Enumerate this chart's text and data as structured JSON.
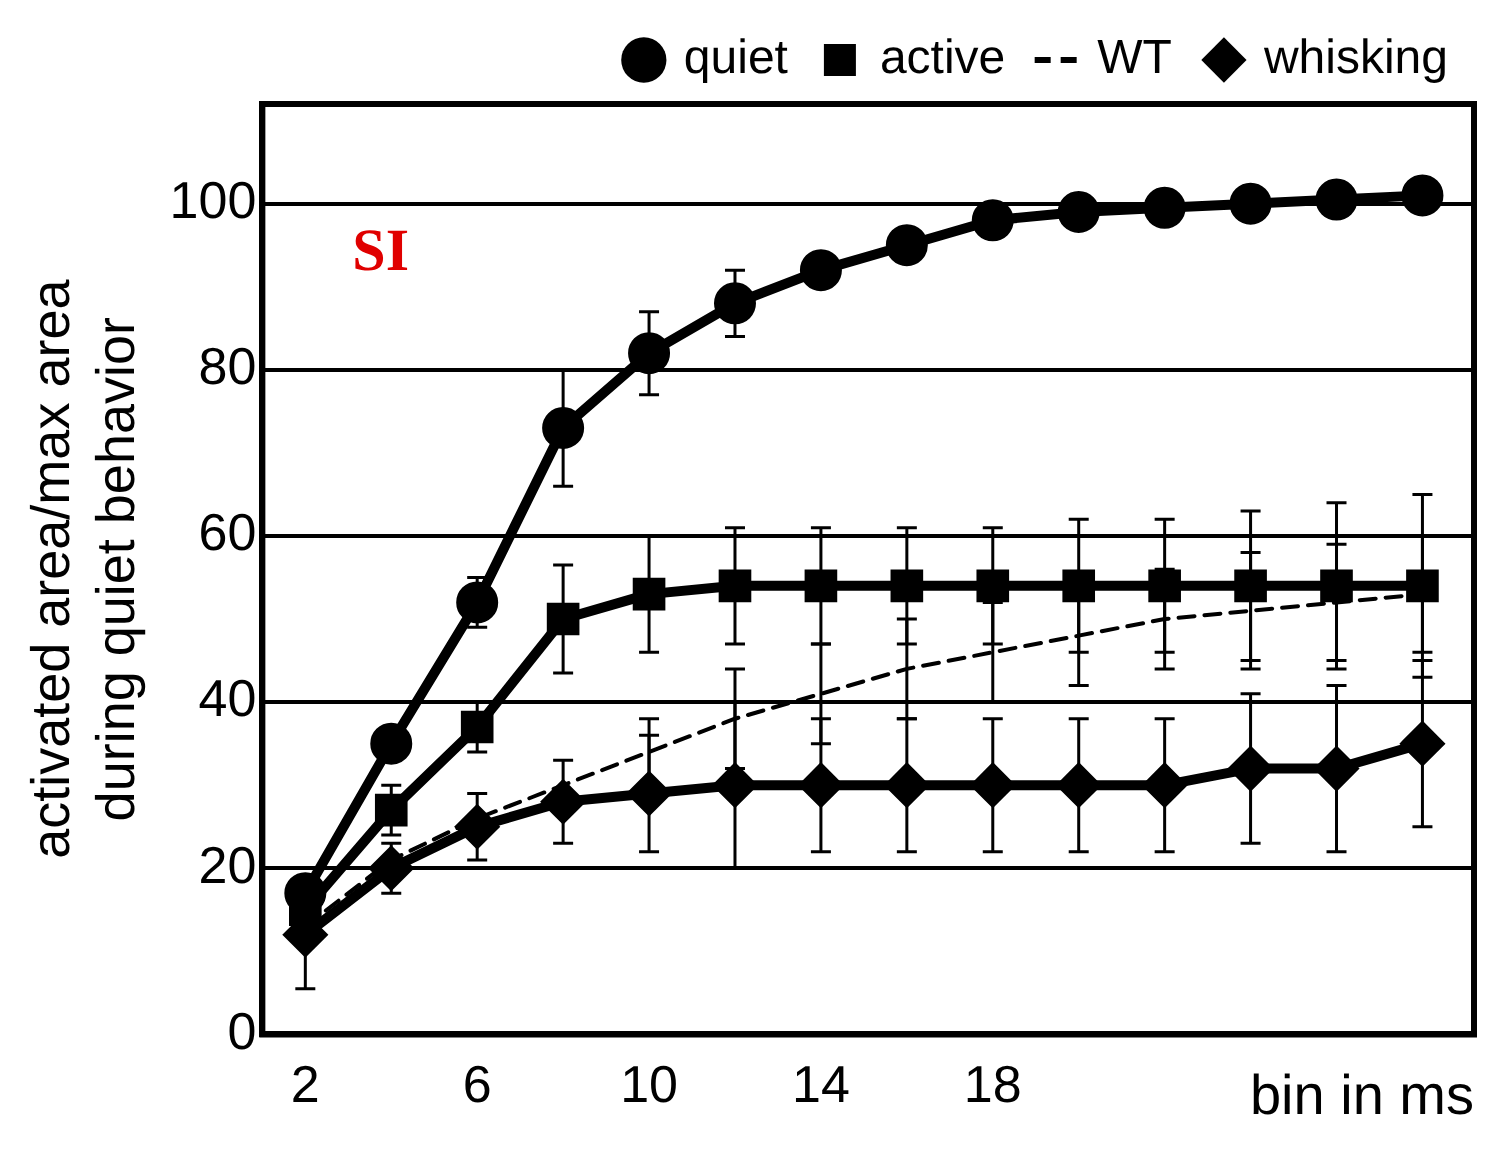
{
  "chart_data": {
    "type": "line",
    "ylabel": "activated area/max area\nduring quiet behavior",
    "xlabel": "bin in ms",
    "annotations": [
      "SI"
    ],
    "x": [
      2,
      4,
      6,
      8,
      10,
      12,
      14,
      16,
      18,
      20,
      22,
      24,
      26,
      28
    ],
    "xlim": [
      1,
      29.2
    ],
    "xticks": [
      2,
      6,
      10,
      14,
      18
    ],
    "ylim": [
      0,
      112
    ],
    "yticks": [
      0,
      20,
      40,
      60,
      80,
      100
    ],
    "grid": "y",
    "legend": "top",
    "series": [
      {
        "name": "quiet",
        "color": "#000000",
        "marker": "circle",
        "line_style": "solid",
        "values": [
          17,
          35,
          52,
          73,
          82,
          88,
          92,
          95,
          98,
          99,
          99.5,
          100,
          100.5,
          101
        ],
        "errors": [
          null,
          null,
          3,
          7,
          5,
          4,
          null,
          null,
          null,
          null,
          null,
          null,
          null,
          null
        ]
      },
      {
        "name": "active",
        "color": "#000000",
        "marker": "square",
        "line_style": "solid",
        "values": [
          15,
          27,
          37,
          50,
          53,
          54,
          54,
          54,
          54,
          54,
          54,
          54,
          54,
          54
        ],
        "errors": [
          null,
          3,
          3,
          6.5,
          7,
          7,
          7,
          7,
          7,
          8,
          8,
          9,
          10,
          11
        ]
      },
      {
        "name": "WT",
        "color": "#000000",
        "marker": "none",
        "line_style": "dashed",
        "values": [
          13,
          21,
          26,
          30,
          34,
          38,
          41,
          44,
          46,
          48,
          50,
          51,
          52,
          53
        ],
        "errors": [
          null,
          null,
          null,
          null,
          4,
          6,
          6,
          6,
          6,
          6,
          6,
          7,
          7,
          7
        ]
      },
      {
        "name": "whisking",
        "color": "#000000",
        "marker": "diamond",
        "line_style": "solid",
        "values": [
          12,
          20,
          25,
          28,
          29,
          30,
          30,
          30,
          30,
          30,
          30,
          32,
          32,
          35
        ],
        "errors": [
          6.5,
          3,
          4,
          5,
          7,
          10,
          8,
          8,
          8,
          8,
          8,
          9,
          10,
          10
        ]
      }
    ]
  }
}
